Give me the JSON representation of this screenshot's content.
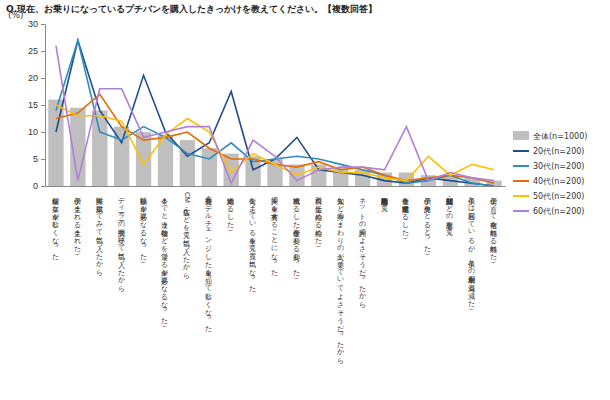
{
  "chart_data": {
    "type": "bar",
    "title": "Q.現在、お乗りになっているプチバンを購入したきっかけを教えてください。【複数回答】",
    "y_label": "(%)",
    "categories": [
      "運転が楽な車が欲しくなった",
      "子供が生まれる（生まれた）",
      "実際に試乗してみて気に入ったから",
      "ディーラーの説明を受けて気に入ったから",
      "移動に車が必要になる（なった）",
      "今までと違う荷物などを運べる車が必要になる（なった）",
      "CM・広告などを見て気に入ったから",
      "新発売・モデルチェンジした車を知って欲しくなった",
      "結婚する（した）",
      "街を走っている車を見て買う気になった",
      "夫婦で車を共有することになった",
      "就職する（した）・仕事が変わる（変わった）",
      "両親と生活し始める（始めた）",
      "知人など身のまわりの人が乗っていてよさそうだったから",
      "ネットの評判でよさそうだったから",
      "自動車専門誌を見て",
      "仕事を定年退職する（した）",
      "子供が免許をとる（とった）",
      "新聞・雑誌などの記事を見て",
      "子供とは同居しているが、子供との車利用が減る（減った）",
      "子供が育って自宅を離れる（離れた）"
    ],
    "series": [
      {
        "name": "全体(n=1000)",
        "type": "bar",
        "color": "#bfbfbf",
        "values": [
          16,
          14.5,
          14,
          11,
          10,
          9.5,
          8.5,
          7,
          6,
          5.5,
          5,
          4,
          4,
          3.5,
          3,
          2.5,
          2.5,
          2,
          2,
          1.5,
          1
        ]
      },
      {
        "name": "20代(n=200)",
        "type": "line",
        "color": "#1f4e8c",
        "values": [
          10,
          27,
          14,
          8,
          20.5,
          10,
          5.5,
          8,
          17.5,
          3,
          5,
          9,
          3,
          2.5,
          2,
          1,
          0.5,
          1.5,
          1,
          0.5,
          0
        ]
      },
      {
        "name": "30代(n=200)",
        "type": "line",
        "color": "#2e8bc0",
        "values": [
          14,
          27,
          10,
          8.5,
          11,
          9,
          6,
          5,
          8,
          4.5,
          5,
          5.5,
          5,
          4,
          3,
          2,
          0.5,
          1,
          2,
          0.5,
          0
        ]
      },
      {
        "name": "40代(n=200)",
        "type": "line",
        "color": "#e46c0a",
        "values": [
          12.5,
          13.5,
          17,
          11,
          8.5,
          9,
          10,
          7,
          5,
          5,
          4,
          3.5,
          4.5,
          3,
          3.5,
          2,
          1,
          1.5,
          2,
          1.5,
          0.5
        ]
      },
      {
        "name": "50代(n=200)",
        "type": "line",
        "color": "#ffc000",
        "values": [
          15,
          13,
          13,
          12,
          4,
          9.5,
          12.5,
          10,
          2.5,
          6,
          4,
          2,
          3.5,
          2.5,
          2.5,
          1.5,
          1,
          5.5,
          2,
          4,
          3
        ]
      },
      {
        "name": "60代(n=200)",
        "type": "line",
        "color": "#b27fd6",
        "values": [
          26,
          1,
          18,
          18,
          9,
          10,
          11,
          11,
          0.5,
          8.5,
          5.5,
          1,
          3,
          3.5,
          3.5,
          3,
          11,
          1,
          2.5,
          1.5,
          1
        ]
      }
    ],
    "ylim": [
      0,
      30
    ],
    "yticks": [
      0,
      5,
      10,
      15,
      20,
      25,
      30
    ],
    "grid": false,
    "legend": "right"
  }
}
